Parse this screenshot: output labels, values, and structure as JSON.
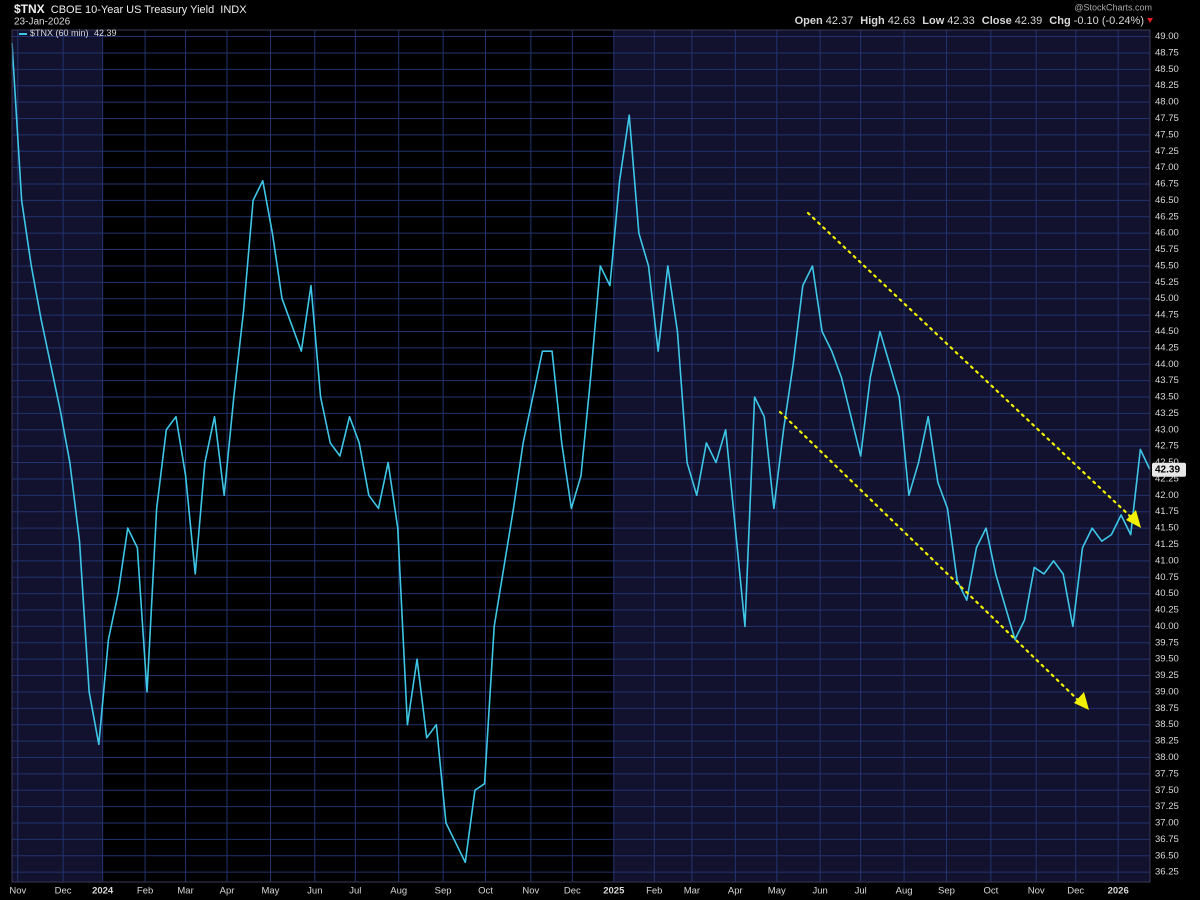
{
  "chart_data": {
    "type": "line",
    "symbol": "$TNX",
    "title": "CBOE 10-Year US Treasury Yield",
    "exchange": "INDX",
    "date": "23-Jan-2026",
    "source": "@StockCharts.com",
    "stats": [
      {
        "label": "Open",
        "value": 42.37
      },
      {
        "label": "High",
        "value": 42.63
      },
      {
        "label": "Low",
        "value": 42.33
      },
      {
        "label": "Close",
        "value": 42.39
      },
      {
        "label": "Chg",
        "value": "-0.10 (-0.24%)"
      }
    ],
    "series": [
      {
        "name": "$TNX (60 min)",
        "last_value": 42.39,
        "color": "#3ec6e6",
        "values": [
          48.9,
          46.5,
          45.5,
          44.7,
          44.0,
          43.3,
          42.5,
          41.3,
          39.0,
          38.2,
          39.8,
          40.5,
          41.5,
          41.2,
          39.0,
          41.8,
          43.0,
          43.2,
          42.3,
          40.8,
          42.5,
          43.2,
          42.0,
          43.5,
          44.8,
          46.5,
          46.8,
          46.0,
          45.0,
          44.6,
          44.2,
          45.2,
          43.5,
          42.8,
          42.6,
          43.2,
          42.8,
          42.0,
          41.8,
          42.5,
          41.5,
          38.5,
          39.5,
          38.3,
          38.5,
          37.0,
          36.7,
          36.4,
          37.5,
          37.6,
          40.0,
          40.9,
          41.8,
          42.8,
          43.5,
          44.2,
          44.2,
          42.8,
          41.8,
          42.3,
          43.8,
          45.5,
          45.2,
          46.8,
          47.8,
          46.0,
          45.5,
          44.2,
          45.5,
          44.5,
          42.5,
          42.0,
          42.8,
          42.5,
          43.0,
          41.5,
          40.0,
          43.5,
          43.2,
          41.8,
          43.0,
          44.0,
          45.2,
          45.5,
          44.5,
          44.2,
          43.8,
          43.2,
          42.6,
          43.8,
          44.5,
          44.0,
          43.5,
          42.0,
          42.5,
          43.2,
          42.2,
          41.8,
          40.7,
          40.4,
          41.2,
          41.5,
          40.8,
          40.3,
          39.8,
          40.1,
          40.9,
          40.8,
          41.0,
          40.8,
          40.0,
          41.2,
          41.5,
          41.3,
          41.4,
          41.7,
          41.4,
          42.7,
          42.39
        ]
      }
    ],
    "xlim": [
      0,
      118
    ],
    "xticks": [
      {
        "value": 0.6,
        "label": "Nov"
      },
      {
        "value": 5.3,
        "label": "Dec"
      },
      {
        "value": 9.4,
        "label": "2024"
      },
      {
        "value": 13.8,
        "label": "Feb"
      },
      {
        "value": 18.0,
        "label": "Mar"
      },
      {
        "value": 22.3,
        "label": "Apr"
      },
      {
        "value": 26.8,
        "label": "May"
      },
      {
        "value": 31.4,
        "label": "Jun"
      },
      {
        "value": 35.6,
        "label": "Jul"
      },
      {
        "value": 40.1,
        "label": "Aug"
      },
      {
        "value": 44.7,
        "label": "Sep"
      },
      {
        "value": 49.1,
        "label": "Oct"
      },
      {
        "value": 53.8,
        "label": "Nov"
      },
      {
        "value": 58.1,
        "label": "Dec"
      },
      {
        "value": 62.4,
        "label": "2025"
      },
      {
        "value": 66.6,
        "label": "Feb"
      },
      {
        "value": 70.5,
        "label": "Mar"
      },
      {
        "value": 75.0,
        "label": "Apr"
      },
      {
        "value": 79.3,
        "label": "May"
      },
      {
        "value": 83.8,
        "label": "Jun"
      },
      {
        "value": 88.0,
        "label": "Jul"
      },
      {
        "value": 92.5,
        "label": "Aug"
      },
      {
        "value": 96.9,
        "label": "Sep"
      },
      {
        "value": 101.5,
        "label": "Oct"
      },
      {
        "value": 106.2,
        "label": "Nov"
      },
      {
        "value": 110.3,
        "label": "Dec"
      },
      {
        "value": 114.7,
        "label": "2026"
      }
    ],
    "ylim": [
      36.1,
      49.1
    ],
    "yticks": [
      {
        "value": 36.25,
        "label": "36.25"
      },
      {
        "value": 36.5,
        "label": "36.50"
      },
      {
        "value": 36.75,
        "label": "36.75"
      },
      {
        "value": 37,
        "label": "37.00"
      },
      {
        "value": 37.25,
        "label": "37.25"
      },
      {
        "value": 37.5,
        "label": "37.50"
      },
      {
        "value": 37.75,
        "label": "37.75"
      },
      {
        "value": 38,
        "label": "38.00"
      },
      {
        "value": 38.25,
        "label": "38.25"
      },
      {
        "value": 38.5,
        "label": "38.50"
      },
      {
        "value": 38.75,
        "label": "38.75"
      },
      {
        "value": 39,
        "label": "39.00"
      },
      {
        "value": 39.25,
        "label": "39.25"
      },
      {
        "value": 39.5,
        "label": "39.50"
      },
      {
        "value": 39.75,
        "label": "39.75"
      },
      {
        "value": 40,
        "label": "40.00"
      },
      {
        "value": 40.25,
        "label": "40.25"
      },
      {
        "value": 40.5,
        "label": "40.50"
      },
      {
        "value": 40.75,
        "label": "40.75"
      },
      {
        "value": 41,
        "label": "41.00"
      },
      {
        "value": 41.25,
        "label": "41.25"
      },
      {
        "value": 41.5,
        "label": "41.50"
      },
      {
        "value": 41.75,
        "label": "41.75"
      },
      {
        "value": 42,
        "label": "42.00"
      },
      {
        "value": 42.25,
        "label": "42.25"
      },
      {
        "value": 42.5,
        "label": "42.50"
      },
      {
        "value": 42.75,
        "label": "42.75"
      },
      {
        "value": 43,
        "label": "43.00"
      },
      {
        "value": 43.25,
        "label": "43.25"
      },
      {
        "value": 43.5,
        "label": "43.50"
      },
      {
        "value": 43.75,
        "label": "43.75"
      },
      {
        "value": 44,
        "label": "44.00"
      },
      {
        "value": 44.25,
        "label": "44.25"
      },
      {
        "value": 44.5,
        "label": "44.50"
      },
      {
        "value": 44.75,
        "label": "44.75"
      },
      {
        "value": 45,
        "label": "45.00"
      },
      {
        "value": 45.25,
        "label": "45.25"
      },
      {
        "value": 45.5,
        "label": "45.50"
      },
      {
        "value": 45.75,
        "label": "45.75"
      },
      {
        "value": 46,
        "label": "46.00"
      },
      {
        "value": 46.25,
        "label": "46.25"
      },
      {
        "value": 46.5,
        "label": "46.50"
      },
      {
        "value": 46.75,
        "label": "46.75"
      },
      {
        "value": 47,
        "label": "47.00"
      },
      {
        "value": 47.25,
        "label": "47.25"
      },
      {
        "value": 47.5,
        "label": "47.50"
      },
      {
        "value": 47.75,
        "label": "47.75"
      },
      {
        "value": 48,
        "label": "48.00"
      },
      {
        "value": 48.25,
        "label": "48.25"
      },
      {
        "value": 48.5,
        "label": "48.50"
      },
      {
        "value": 48.75,
        "label": "48.75"
      },
      {
        "value": 49,
        "label": "49.00"
      }
    ],
    "grid": true
  }
}
